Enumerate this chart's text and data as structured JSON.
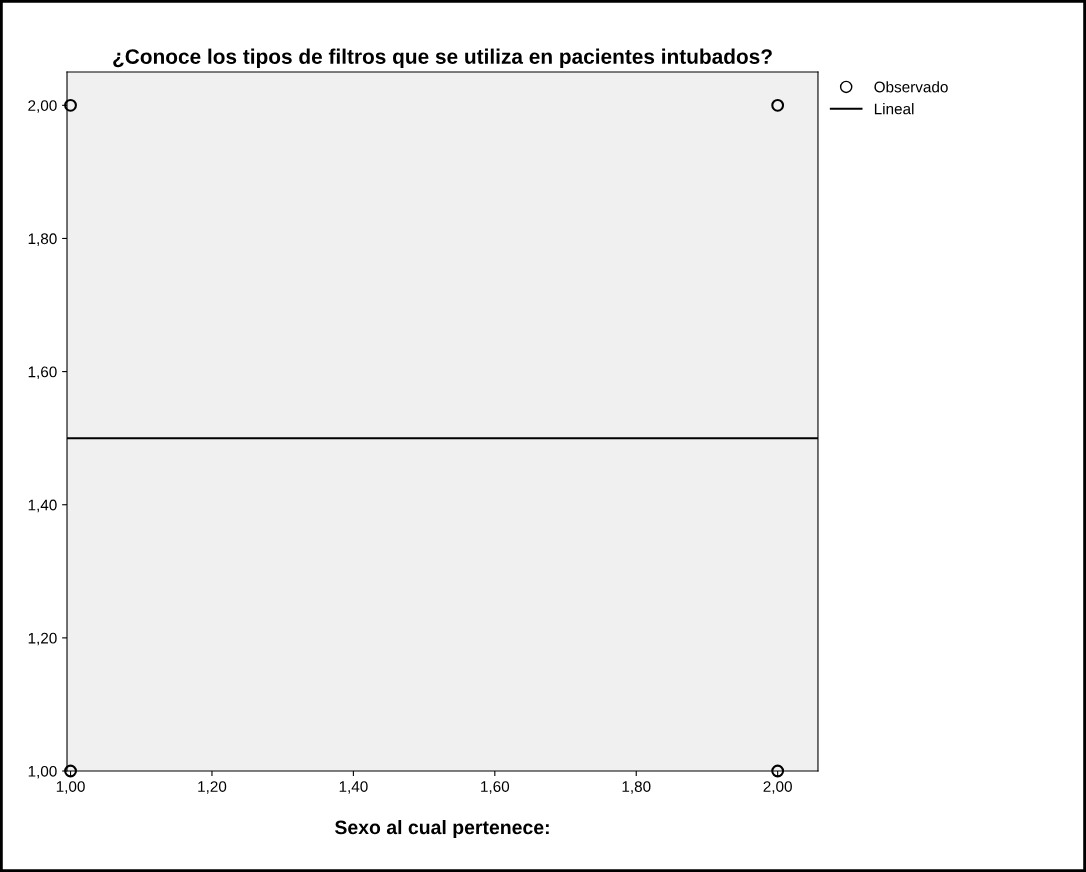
{
  "chart_data": {
    "type": "scatter",
    "title": "¿Conoce los tipos de filtros que se utiliza en pacientes intubados?",
    "xlabel": "Sexo al cual pertenece:",
    "series": [
      {
        "name": "Observado",
        "color": "#000000",
        "marker": "circle",
        "x": [
          1,
          1,
          2,
          2
        ],
        "values": [
          2,
          1,
          2,
          1
        ]
      },
      {
        "name": "Lineal",
        "type": "line",
        "color": "#000000",
        "marker": "none",
        "line_style": "solid",
        "x": [
          0.995,
          2.057
        ],
        "values": [
          1.5,
          1.5
        ]
      }
    ],
    "xlim": [
      0.995,
      2.057
    ],
    "ylim": [
      1.0,
      2.05
    ],
    "xticks": [
      {
        "value": 1,
        "label": "1,00"
      },
      {
        "value": 1.2,
        "label": "1,20"
      },
      {
        "value": 1.4,
        "label": "1,40"
      },
      {
        "value": 1.6,
        "label": "1,60"
      },
      {
        "value": 1.8,
        "label": "1,80"
      },
      {
        "value": 2,
        "label": "2,00"
      }
    ],
    "yticks": [
      {
        "value": 1,
        "label": "1,00"
      },
      {
        "value": 1.2,
        "label": "1,20"
      },
      {
        "value": 1.4,
        "label": "1,40"
      },
      {
        "value": 1.6,
        "label": "1,60"
      },
      {
        "value": 1.8,
        "label": "1,80"
      },
      {
        "value": 2,
        "label": "2,00"
      }
    ],
    "grid": false,
    "legend": "top right"
  }
}
